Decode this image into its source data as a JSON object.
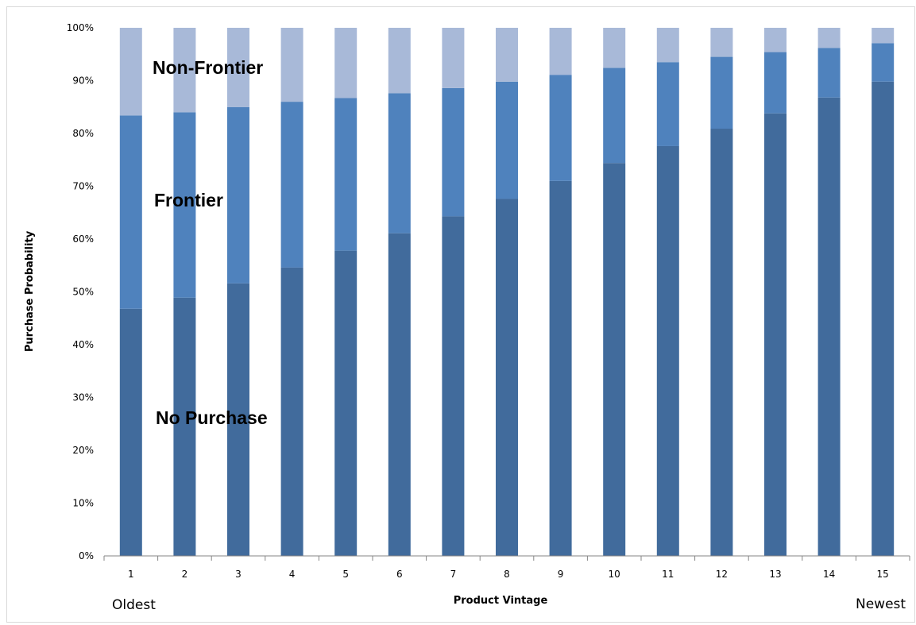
{
  "chart_data": {
    "type": "bar",
    "stacked": true,
    "categories": [
      "1",
      "2",
      "3",
      "4",
      "5",
      "6",
      "7",
      "8",
      "9",
      "10",
      "11",
      "12",
      "13",
      "14",
      "15"
    ],
    "series": [
      {
        "name": "No Purchase",
        "color": "#416b9c",
        "values": [
          46.8,
          48.9,
          51.6,
          54.6,
          57.8,
          61.1,
          64.3,
          67.6,
          71.0,
          74.4,
          77.6,
          80.9,
          83.8,
          86.8,
          89.8
        ]
      },
      {
        "name": "Frontier",
        "color": "#4f82bd",
        "values": [
          36.6,
          35.1,
          33.4,
          31.4,
          28.9,
          26.5,
          24.3,
          22.2,
          20.1,
          18.0,
          15.9,
          13.6,
          11.6,
          9.4,
          7.3
        ]
      },
      {
        "name": "Non-Frontier",
        "color": "#a8b9d8",
        "values": [
          16.6,
          16.0,
          15.0,
          14.0,
          13.3,
          12.4,
          11.4,
          10.2,
          8.9,
          7.6,
          6.5,
          5.5,
          4.6,
          3.8,
          2.9
        ]
      }
    ],
    "yticks": [
      "0%",
      "10%",
      "20%",
      "30%",
      "40%",
      "50%",
      "60%",
      "70%",
      "80%",
      "90%",
      "100%"
    ],
    "ylim": [
      0,
      100
    ],
    "xlabel": "Product Vintage",
    "ylabel": "Purchase Probability",
    "grid": false,
    "legend": "none",
    "annotations": {
      "non_frontier": "Non-Frontier",
      "frontier": "Frontier",
      "no_purchase": "No Purchase",
      "left_end": "Oldest",
      "right_end": "Newest"
    }
  }
}
